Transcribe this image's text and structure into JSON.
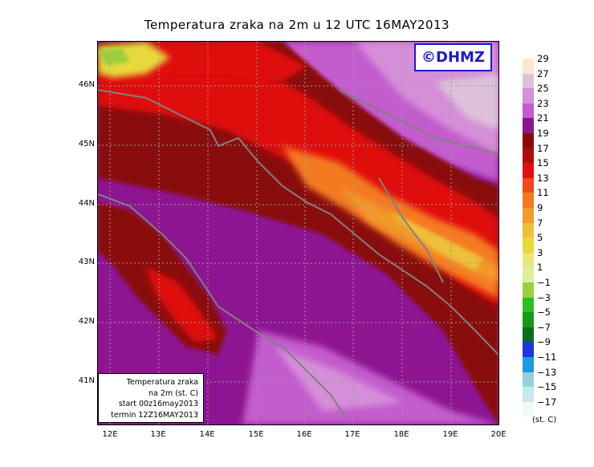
{
  "title": "Temperatura zraka na 2m u 12 UTC 16MAY2013",
  "logo": "©DHMZ",
  "info": {
    "line1": "Temperatura zraka",
    "line2": "na 2m (st. C)",
    "line3": "start 00z16may2013",
    "line4": "termin 12Z16MAY2013"
  },
  "lat_labels": [
    "46N",
    "45N",
    "44N",
    "43N",
    "42N",
    "41N"
  ],
  "lon_labels": [
    "12E",
    "13E",
    "14E",
    "15E",
    "16E",
    "17E",
    "18E",
    "19E",
    "20E"
  ],
  "legend": {
    "labels": [
      "29",
      "27",
      "25",
      "23",
      "21",
      "19",
      "17",
      "15",
      "13",
      "11",
      "9",
      "7",
      "5",
      "3",
      "1",
      "−1",
      "−3",
      "−5",
      "−7",
      "−9",
      "−11",
      "−13",
      "−15",
      "−17"
    ],
    "colors": [
      "#fbe7d6",
      "#dcc1d9",
      "#d58ed8",
      "#c35ccd",
      "#8e1591",
      "#8a0a0a",
      "#b00c0c",
      "#e01010",
      "#f04a18",
      "#f47a22",
      "#f29a2a",
      "#eebf3a",
      "#e7d93c",
      "#e9e77c",
      "#dcee9c",
      "#9ccf3e",
      "#2cbf22",
      "#189a18",
      "#0a6e1c",
      "#1b38e0",
      "#1e9ae0",
      "#95cfe0",
      "#c7e8ee",
      "#f0f9f6"
    ],
    "unit": "(st. C)"
  },
  "colors": {
    "sea_purple": "#8e1591",
    "warm_red": "#8a0a0a",
    "coast_line": "#808080"
  }
}
